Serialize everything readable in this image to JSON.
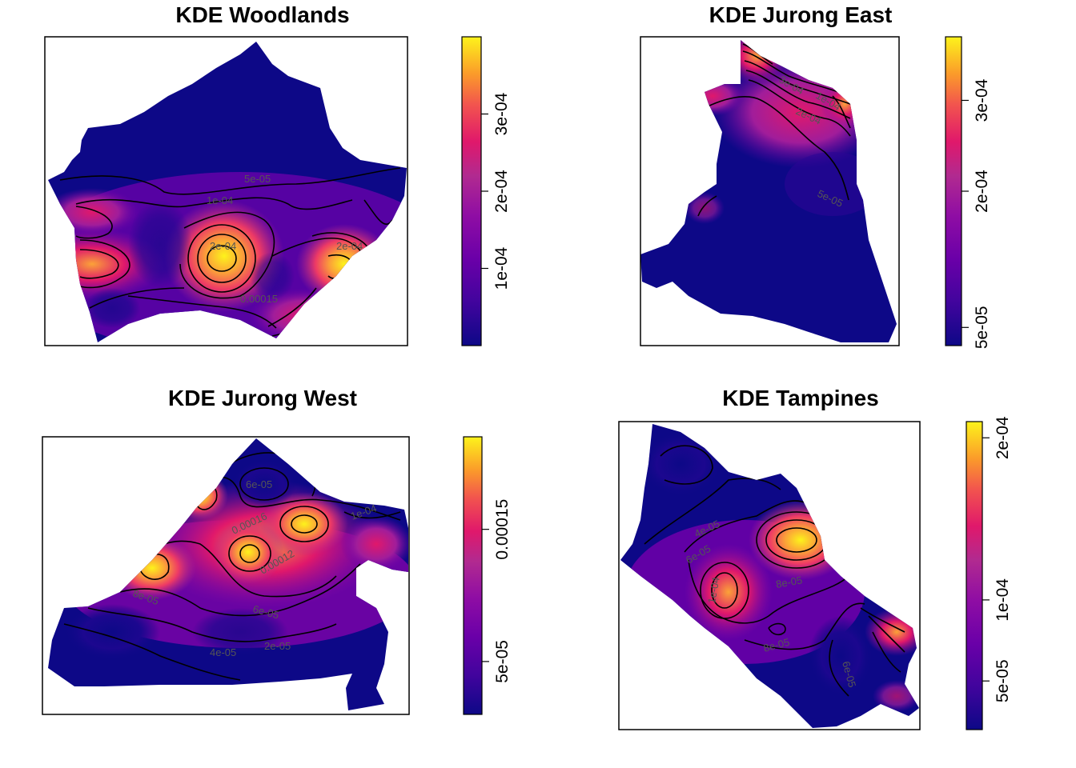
{
  "chart_data": [
    {
      "type": "heatmap",
      "title": "KDE Woodlands",
      "xlabel": "",
      "ylabel": "",
      "colorbar": {
        "range": [
          0,
          0.0004
        ],
        "ticks": [
          0.0001,
          0.0002,
          0.0003
        ],
        "tick_labels": [
          "1e-04",
          "2e-04",
          "3e-04"
        ]
      },
      "contour_labels": [
        "5e-05",
        "1e-04",
        "2e-04",
        "0.00015",
        "2e-04"
      ],
      "grid": false,
      "legend": "right"
    },
    {
      "type": "heatmap",
      "title": "KDE Jurong East",
      "xlabel": "",
      "ylabel": "",
      "colorbar": {
        "range": [
          3e-05,
          0.00037
        ],
        "ticks": [
          5e-05,
          0.0002,
          0.0003
        ],
        "tick_labels": [
          "5e-05",
          "2e-04",
          "3e-04"
        ]
      },
      "contour_labels": [
        "5e-05",
        "2e-04",
        "1e-04",
        "3e-04"
      ],
      "grid": false,
      "legend": "right"
    },
    {
      "type": "heatmap",
      "title": "KDE Jurong West",
      "xlabel": "",
      "ylabel": "",
      "colorbar": {
        "range": [
          1e-05,
          0.00022
        ],
        "ticks": [
          5e-05,
          0.00015
        ],
        "tick_labels": [
          "5e-05",
          "0.00015"
        ]
      },
      "contour_labels": [
        "6e-05",
        "2e-05",
        "8e-05",
        "0.00016",
        "1e-04",
        "0.00012",
        "6e-05",
        "4e-05"
      ],
      "grid": false,
      "legend": "right"
    },
    {
      "type": "heatmap",
      "title": "KDE Tampines",
      "xlabel": "",
      "ylabel": "",
      "colorbar": {
        "range": [
          2e-05,
          0.00021
        ],
        "ticks": [
          5e-05,
          0.0001,
          0.0002
        ],
        "tick_labels": [
          "5e-05",
          "1e-04",
          "2e-04"
        ]
      },
      "contour_labels": [
        "4e-05",
        "6e-05",
        "8e-05",
        "1e-04",
        "8e-05",
        "6e-05"
      ],
      "grid": false,
      "legend": "right"
    }
  ]
}
